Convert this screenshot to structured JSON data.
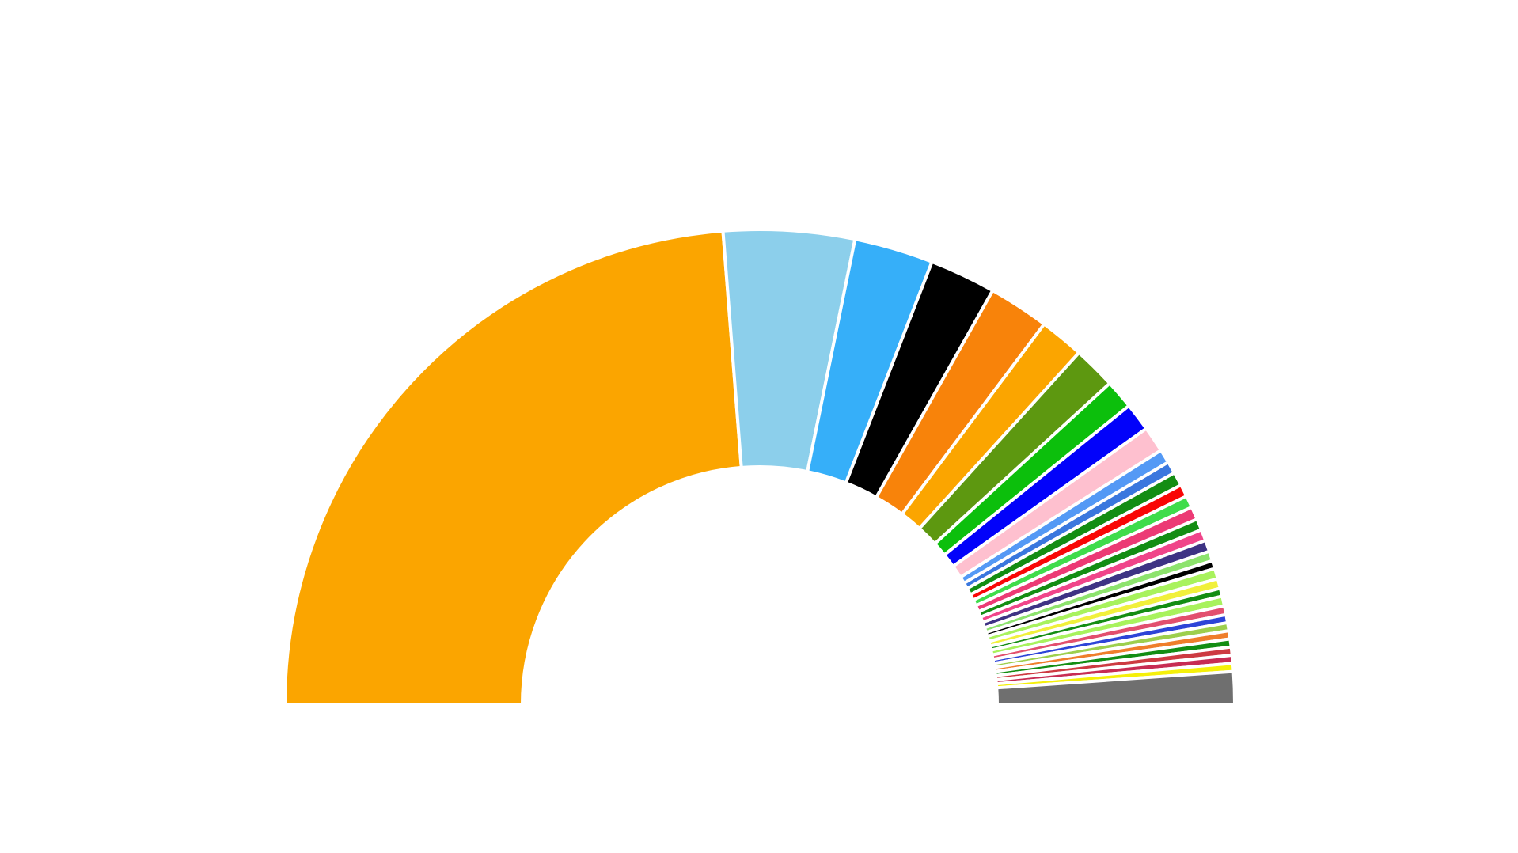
{
  "chart_data": {
    "type": "pie",
    "subtype": "semicircle-donut",
    "title": "",
    "legend": "none",
    "grid": false,
    "slices": [
      {
        "value": 86.5,
        "color": "#fba500"
      },
      {
        "value": 16.2,
        "color": "#8ccfeb"
      },
      {
        "value": 9.8,
        "color": "#36aff9"
      },
      {
        "value": 8.2,
        "color": "#000000"
      },
      {
        "value": 7.5,
        "color": "#f8830a"
      },
      {
        "value": 5.5,
        "color": "#fba500"
      },
      {
        "value": 5.3,
        "color": "#5d9810"
      },
      {
        "value": 3.6,
        "color": "#0cbf0c"
      },
      {
        "value": 3.5,
        "color": "#0202fa"
      },
      {
        "value": 3.2,
        "color": "#fec0cf"
      },
      {
        "value": 1.7,
        "color": "#5499f5"
      },
      {
        "value": 1.5,
        "color": "#3a77de"
      },
      {
        "value": 1.7,
        "color": "#138d13"
      },
      {
        "value": 1.5,
        "color": "#f90606"
      },
      {
        "value": 1.5,
        "color": "#3fdc4b"
      },
      {
        "value": 1.6,
        "color": "#ec3a75"
      },
      {
        "value": 1.4,
        "color": "#138d13"
      },
      {
        "value": 1.4,
        "color": "#f0458a"
      },
      {
        "value": 1.4,
        "color": "#3e3384"
      },
      {
        "value": 1.2,
        "color": "#8de36d"
      },
      {
        "value": 1.0,
        "color": "#000000"
      },
      {
        "value": 1.3,
        "color": "#a8f25d"
      },
      {
        "value": 1.2,
        "color": "#f1f03c"
      },
      {
        "value": 1.0,
        "color": "#138d13"
      },
      {
        "value": 1.2,
        "color": "#a8f25d"
      },
      {
        "value": 1.1,
        "color": "#e24f6e"
      },
      {
        "value": 1.0,
        "color": "#2d44d7"
      },
      {
        "value": 1.0,
        "color": "#9dcf4d"
      },
      {
        "value": 1.0,
        "color": "#ef7e2b"
      },
      {
        "value": 1.0,
        "color": "#138d13"
      },
      {
        "value": 1.0,
        "color": "#cd3a41"
      },
      {
        "value": 1.0,
        "color": "#c72c53"
      },
      {
        "value": 1.0,
        "color": "#f5f00a"
      },
      {
        "value": 4.0,
        "color": "#6f6f6f"
      }
    ]
  }
}
